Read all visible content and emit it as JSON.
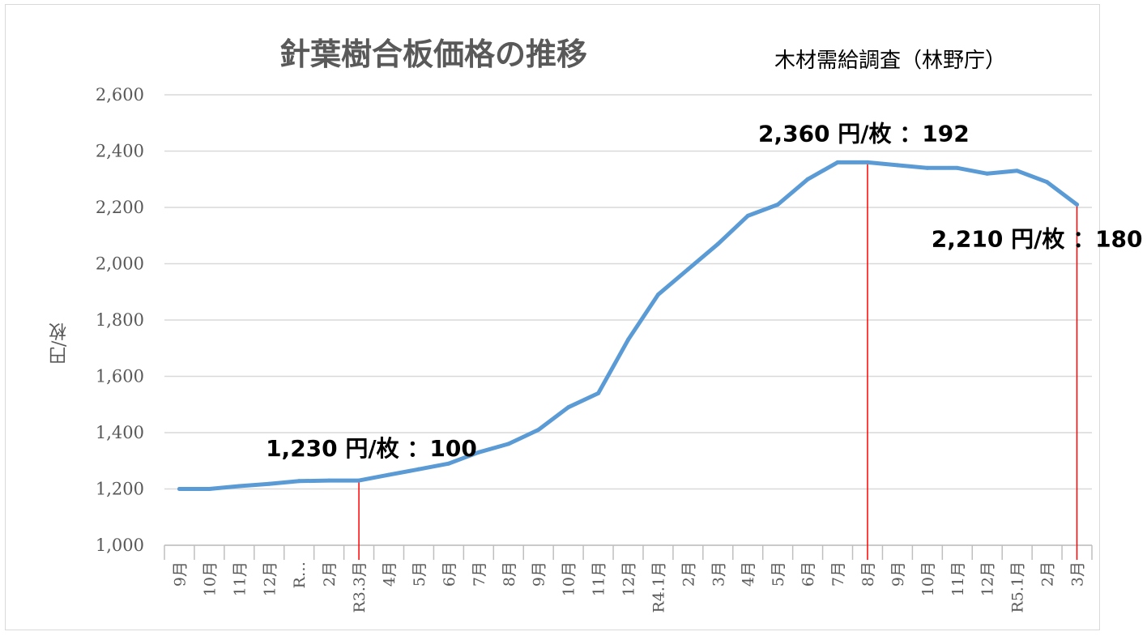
{
  "chart_data": {
    "type": "line",
    "title": "針葉樹合板価格の推移",
    "source": "木材需給調査（林野庁）",
    "ylabel": "円/枚",
    "ylim": [
      1000,
      2600
    ],
    "yticks": [
      1000,
      1200,
      1400,
      1600,
      1800,
      2000,
      2200,
      2400,
      2600
    ],
    "ytick_labels": [
      "1,000",
      "1,200",
      "1,400",
      "1,600",
      "1,800",
      "2,000",
      "2,200",
      "2,400",
      "2,600"
    ],
    "grid": true,
    "categories": [
      "9月",
      "10月",
      "11月",
      "12月",
      "R…",
      "2月",
      "R3.3月",
      "4月",
      "5月",
      "6月",
      "7月",
      "8月",
      "9月",
      "10月",
      "11月",
      "12月",
      "R4.1月",
      "2月",
      "3月",
      "4月",
      "5月",
      "6月",
      "7月",
      "8月",
      "9月",
      "10月",
      "11月",
      "12月",
      "R5.1月",
      "2月",
      "3月"
    ],
    "series": [
      {
        "color": "#5b9bd5",
        "values": [
          1200,
          1200,
          1210,
          1218,
          1228,
          1230,
          1230,
          1250,
          1270,
          1290,
          1330,
          1360,
          1410,
          1490,
          1540,
          1730,
          1890,
          1980,
          2070,
          2170,
          2210,
          2300,
          2360,
          2360,
          2350,
          2340,
          2340,
          2320,
          2330,
          2290,
          2210
        ]
      }
    ],
    "annotations": [
      {
        "text": "1,230 円/枚 ：100",
        "category_index": 6,
        "value": 1230
      },
      {
        "text": "2,360 円/枚 ：192",
        "category_index": 23,
        "value": 2360
      },
      {
        "text": "2,210 円/枚 ：180",
        "category_index": 30,
        "value": 2210
      }
    ],
    "annotation_line_color": "#ff0000"
  }
}
